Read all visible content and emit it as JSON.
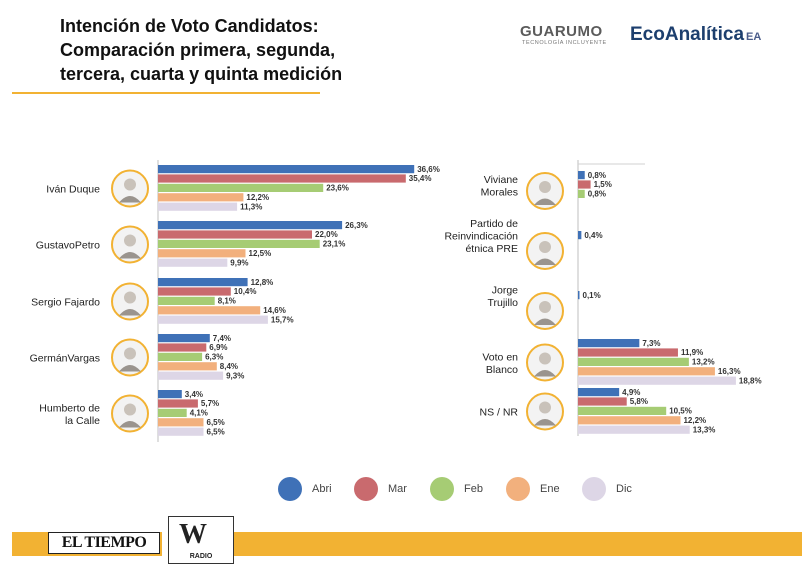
{
  "header": {
    "title_lines": [
      "Intención de Voto Candidatos:",
      "Comparación primera, segunda,",
      "tercera, cuarta y quinta medición"
    ]
  },
  "logos": {
    "guarumo": "GUARUMO",
    "guarumo_sub": "TECNOLOGÍA INCLUYENTE",
    "ecoanalitica": "EcoAnalítica",
    "ecoanalitica_mark": "EA",
    "el_tiempo": "EL TIEMPO",
    "w_radio_w": "W",
    "w_radio_label": "RADIO"
  },
  "colors": {
    "Abri": "#3f71b7",
    "Mar": "#c96a6e",
    "Feb": "#a6cc74",
    "Ene": "#f2b07d",
    "Dic": "#ddd6e6",
    "accent": "#f2b233"
  },
  "chart_data": [
    {
      "type": "bar",
      "orientation": "horizontal",
      "series_names": [
        "Abri",
        "Mar",
        "Feb",
        "Ene",
        "Dic"
      ],
      "categories": [
        {
          "label": [
            "Iván Duque"
          ],
          "values": [
            36.6,
            35.4,
            23.6,
            12.2,
            11.3
          ],
          "labels": [
            "36,6%",
            "35,4%",
            "23,6%",
            "12,2%",
            "11,3%"
          ]
        },
        {
          "label": [
            "GustavoPetro"
          ],
          "values": [
            26.3,
            22.0,
            23.1,
            12.5,
            9.9
          ],
          "labels": [
            "26,3%",
            "22,0%",
            "23,1%",
            "12,5%",
            "9,9%"
          ]
        },
        {
          "label": [
            "Sergio Fajardo"
          ],
          "values": [
            12.8,
            10.4,
            8.1,
            14.6,
            15.7
          ],
          "labels": [
            "12,8%",
            "10,4%",
            "8,1%",
            "14,6%",
            "15,7%"
          ]
        },
        {
          "label": [
            "GermánVargas"
          ],
          "values": [
            7.4,
            6.9,
            6.3,
            8.4,
            9.3
          ],
          "labels": [
            "7,4%",
            "6,9%",
            "6,3%",
            "8,4%",
            "9,3%"
          ]
        },
        {
          "label": [
            "Humberto de",
            "la  Calle"
          ],
          "values": [
            3.4,
            5.7,
            4.1,
            6.5,
            6.5
          ],
          "labels": [
            "3,4%",
            "5,7%",
            "4,1%",
            "6,5%",
            "6,5%"
          ]
        }
      ]
    },
    {
      "type": "bar",
      "orientation": "horizontal",
      "series_names": [
        "Abri",
        "Mar",
        "Feb",
        "Ene",
        "Dic"
      ],
      "categories": [
        {
          "label": [
            "Viviane",
            "Morales"
          ],
          "values": [
            0.8,
            1.5,
            0.8
          ],
          "labels": [
            "0,8%",
            "1,5%",
            "0,8%"
          ]
        },
        {
          "label": [
            "Partido de",
            "Reinvindicación",
            "étnica PRE"
          ],
          "values": [
            0.4
          ],
          "labels": [
            "0,4%"
          ]
        },
        {
          "label": [
            "Jorge",
            "Trujillo"
          ],
          "values": [
            0.1
          ],
          "labels": [
            "0,1%"
          ]
        },
        {
          "label": [
            "Voto en",
            "Blanco"
          ],
          "values": [
            7.3,
            11.9,
            13.2,
            16.3,
            18.8
          ],
          "labels": [
            "7,3%",
            "11,9%",
            "13,2%",
            "16,3%",
            "18,8%"
          ]
        },
        {
          "label": [
            "NS / NR"
          ],
          "values": [
            4.9,
            5.8,
            10.5,
            12.2,
            13.3
          ],
          "labels": [
            "4,9%",
            "5,8%",
            "10,5%",
            "12,2%",
            "13,3%"
          ]
        }
      ]
    }
  ],
  "legend": [
    {
      "label": "Abri",
      "color": "#3f71b7"
    },
    {
      "label": "Mar",
      "color": "#c96a6e"
    },
    {
      "label": "Feb",
      "color": "#a6cc74"
    },
    {
      "label": "Ene",
      "color": "#f2b07d"
    },
    {
      "label": "Dic",
      "color": "#ddd6e6"
    }
  ]
}
